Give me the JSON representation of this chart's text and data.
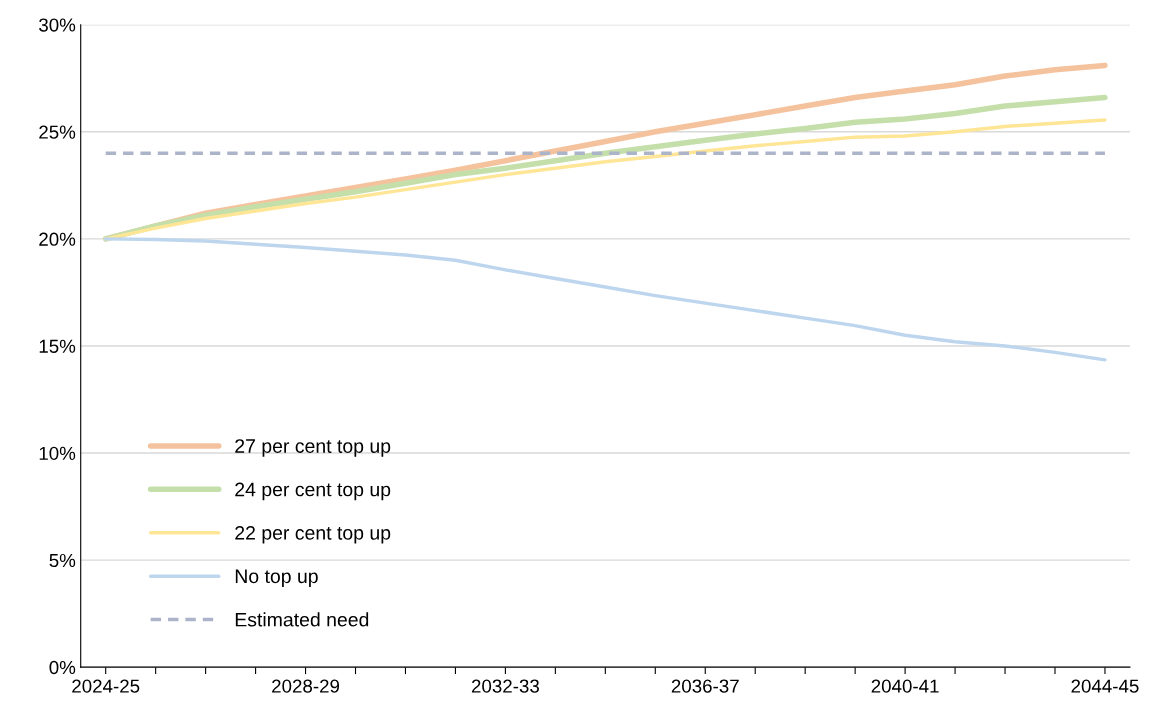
{
  "chart_data": {
    "type": "line",
    "categories": [
      "2024-25",
      null,
      null,
      null,
      "2028-29",
      null,
      null,
      null,
      "2032-33",
      null,
      null,
      null,
      "2036-37",
      null,
      null,
      null,
      "2040-41",
      null,
      null,
      null,
      "2044-45"
    ],
    "ylim": [
      0,
      30
    ],
    "yticks": [
      {
        "value": 0,
        "label": "0%"
      },
      {
        "value": 5,
        "label": "5%"
      },
      {
        "value": 10,
        "label": "10%"
      },
      {
        "value": 15,
        "label": "15%"
      },
      {
        "value": 20,
        "label": "20%"
      },
      {
        "value": 25,
        "label": "25%"
      },
      {
        "value": 30,
        "label": "30%"
      }
    ],
    "grid": "y",
    "legend": "bottom left",
    "marker": "none",
    "series": [
      {
        "name": "27 per cent top up",
        "color": "#f5c29e",
        "values": [
          20,
          20.6,
          21.2,
          21.6,
          22.0,
          22.4,
          22.8,
          23.2,
          23.65,
          24.1,
          24.55,
          25.0,
          25.4,
          25.8,
          26.2,
          26.6,
          26.9,
          27.2,
          27.6,
          27.9,
          28.1
        ]
      },
      {
        "name": "24 per cent top up",
        "color": "#c5dfab",
        "values": [
          20,
          20.6,
          21.1,
          21.5,
          21.85,
          22.2,
          22.6,
          23.0,
          23.3,
          23.65,
          24.0,
          24.3,
          24.6,
          24.9,
          25.15,
          25.45,
          25.6,
          25.85,
          26.2,
          26.4,
          26.6
        ]
      },
      {
        "name": "22 per cent top up",
        "color": "#ffe596",
        "values": [
          20,
          20.5,
          20.95,
          21.3,
          21.65,
          21.95,
          22.3,
          22.65,
          23.0,
          23.3,
          23.6,
          23.85,
          24.1,
          24.35,
          24.55,
          24.75,
          24.8,
          25.0,
          25.25,
          25.4,
          25.55
        ]
      },
      {
        "name": "No top up",
        "color": "#bdd6ee",
        "values": [
          20,
          19.97,
          19.9,
          19.75,
          19.6,
          19.42,
          19.25,
          19.0,
          18.55,
          18.15,
          17.75,
          17.35,
          17.0,
          16.65,
          16.3,
          15.95,
          15.5,
          15.2,
          15.0,
          14.7,
          14.35
        ]
      },
      {
        "name": "Estimated need",
        "color": "#abb4c9",
        "line_style": "dashed",
        "values": [
          24,
          24,
          24,
          24,
          24,
          24,
          24,
          24,
          24,
          24,
          24,
          24,
          24,
          24,
          24,
          24,
          24,
          24,
          24,
          24,
          24
        ]
      }
    ]
  }
}
